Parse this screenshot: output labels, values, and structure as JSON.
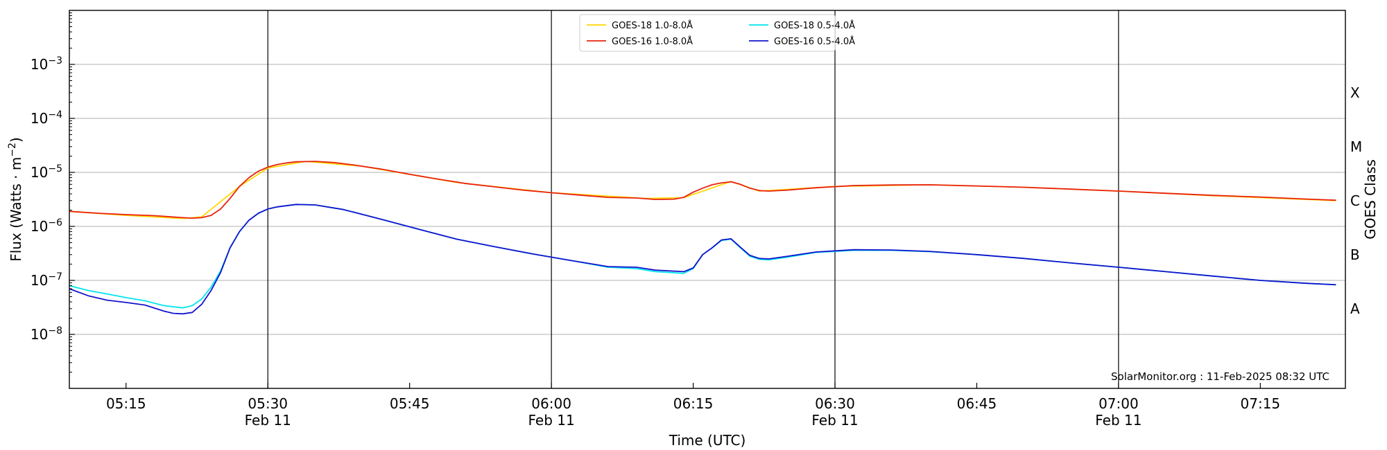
{
  "chart_data": {
    "type": "line",
    "xlabel": "Time (UTC)",
    "ylabel_base": "Flux (Watts · m",
    "ylabel_exp": "−2",
    "ylabel_close": ")",
    "y2label": "GOES Class",
    "y_scale": "log",
    "xlim": [
      "2025-02-11T05:09",
      "2025-02-11T07:24"
    ],
    "ylim": [
      1e-09,
      0.01
    ],
    "grid": "horizontal",
    "legend": {
      "placement": "top-center",
      "columns": 2
    },
    "x_ticks": [
      {
        "time": "2025-02-11T05:15",
        "label": "05:15",
        "sublabel": ""
      },
      {
        "time": "2025-02-11T05:30",
        "label": "05:30",
        "sublabel": "Feb 11"
      },
      {
        "time": "2025-02-11T05:45",
        "label": "05:45",
        "sublabel": ""
      },
      {
        "time": "2025-02-11T06:00",
        "label": "06:00",
        "sublabel": "Feb 11"
      },
      {
        "time": "2025-02-11T06:15",
        "label": "06:15",
        "sublabel": ""
      },
      {
        "time": "2025-02-11T06:30",
        "label": "06:30",
        "sublabel": "Feb 11"
      },
      {
        "time": "2025-02-11T06:45",
        "label": "06:45",
        "sublabel": ""
      },
      {
        "time": "2025-02-11T07:00",
        "label": "07:00",
        "sublabel": "Feb 11"
      },
      {
        "time": "2025-02-11T07:15",
        "label": "07:15",
        "sublabel": ""
      }
    ],
    "vlines": [
      "2025-02-11T05:30",
      "2025-02-11T06:00",
      "2025-02-11T06:30",
      "2025-02-11T07:00"
    ],
    "y_ticks": [
      {
        "value": 1e-08,
        "base": "10",
        "exp": "−8"
      },
      {
        "value": 1e-07,
        "base": "10",
        "exp": "−7"
      },
      {
        "value": 1e-06,
        "base": "10",
        "exp": "−6"
      },
      {
        "value": 1e-05,
        "base": "10",
        "exp": "−5"
      },
      {
        "value": 0.0001,
        "base": "10",
        "exp": "−4"
      },
      {
        "value": 0.001,
        "base": "10",
        "exp": "−3"
      }
    ],
    "y2_ticks": [
      {
        "value": 3e-08,
        "label": "A"
      },
      {
        "value": 3e-07,
        "label": "B"
      },
      {
        "value": 3e-06,
        "label": "C"
      },
      {
        "value": 3e-05,
        "label": "M"
      },
      {
        "value": 0.0003,
        "label": "X"
      }
    ],
    "annotation": "SolarMonitor.org : 11-Feb-2025 08:32 UTC",
    "series": [
      {
        "name": "GOES-18 1.0-8.0Å",
        "color": "#ffd700",
        "x": [
          "2025-02-11T05:09",
          "2025-02-11T05:15",
          "2025-02-11T05:21",
          "2025-02-11T05:23",
          "2025-02-11T05:27",
          "2025-02-11T05:30",
          "2025-02-11T05:34",
          "2025-02-11T05:40",
          "2025-02-11T05:50",
          "2025-02-11T06:00",
          "2025-02-11T06:10",
          "2025-02-11T06:14",
          "2025-02-11T06:19",
          "2025-02-11T06:22",
          "2025-02-11T06:30",
          "2025-02-11T06:40",
          "2025-02-11T06:50",
          "2025-02-11T07:00",
          "2025-02-11T07:10",
          "2025-02-11T07:23"
        ],
        "values": [
          1.9e-06,
          1.6e-06,
          1.4e-06,
          1.5e-06,
          5.5e-06,
          1.2e-05,
          1.6e-05,
          1.3e-05,
          6.5e-06,
          4.2e-06,
          3.3e-06,
          3.4e-06,
          6.8e-06,
          4.5e-06,
          5.5e-06,
          5.9e-06,
          5.3e-06,
          4.5e-06,
          3.7e-06,
          3e-06
        ]
      },
      {
        "name": "GOES-16 1.0-8.0Å",
        "color": "#e8220e",
        "x": [
          "2025-02-11T05:09",
          "2025-02-11T05:12",
          "2025-02-11T05:15",
          "2025-02-11T05:18",
          "2025-02-11T05:21",
          "2025-02-11T05:22",
          "2025-02-11T05:23",
          "2025-02-11T05:24",
          "2025-02-11T05:25",
          "2025-02-11T05:26",
          "2025-02-11T05:27",
          "2025-02-11T05:28",
          "2025-02-11T05:29",
          "2025-02-11T05:30",
          "2025-02-11T05:31",
          "2025-02-11T05:32",
          "2025-02-11T05:33",
          "2025-02-11T05:35",
          "2025-02-11T05:37",
          "2025-02-11T05:39",
          "2025-02-11T05:42",
          "2025-02-11T05:45",
          "2025-02-11T05:48",
          "2025-02-11T05:51",
          "2025-02-11T05:54",
          "2025-02-11T05:57",
          "2025-02-11T06:00",
          "2025-02-11T06:03",
          "2025-02-11T06:06",
          "2025-02-11T06:09",
          "2025-02-11T06:11",
          "2025-02-11T06:13",
          "2025-02-11T06:14",
          "2025-02-11T06:15",
          "2025-02-11T06:16",
          "2025-02-11T06:17",
          "2025-02-11T06:18",
          "2025-02-11T06:19",
          "2025-02-11T06:20",
          "2025-02-11T06:21",
          "2025-02-11T06:22",
          "2025-02-11T06:23",
          "2025-02-11T06:25",
          "2025-02-11T06:28",
          "2025-02-11T06:32",
          "2025-02-11T06:36",
          "2025-02-11T06:40",
          "2025-02-11T06:45",
          "2025-02-11T06:50",
          "2025-02-11T06:55",
          "2025-02-11T07:00",
          "2025-02-11T07:05",
          "2025-02-11T07:10",
          "2025-02-11T07:15",
          "2025-02-11T07:20",
          "2025-02-11T07:23"
        ],
        "values": [
          1.9e-06,
          1.75e-06,
          1.65e-06,
          1.58e-06,
          1.45e-06,
          1.42e-06,
          1.45e-06,
          1.6e-06,
          2.1e-06,
          3.3e-06,
          5.5e-06,
          8e-06,
          1.05e-05,
          1.25e-05,
          1.4e-05,
          1.5e-05,
          1.57e-05,
          1.6e-05,
          1.52e-05,
          1.38e-05,
          1.15e-05,
          9.2e-06,
          7.5e-06,
          6.2e-06,
          5.4e-06,
          4.7e-06,
          4.2e-06,
          3.8e-06,
          3.45e-06,
          3.35e-06,
          3.15e-06,
          3.2e-06,
          3.45e-06,
          4.3e-06,
          5.1e-06,
          5.9e-06,
          6.4e-06,
          6.7e-06,
          6e-06,
          5.1e-06,
          4.6e-06,
          4.5e-06,
          4.7e-06,
          5.2e-06,
          5.7e-06,
          5.85e-06,
          5.9e-06,
          5.6e-06,
          5.3e-06,
          4.9e-06,
          4.5e-06,
          4.1e-06,
          3.75e-06,
          3.5e-06,
          3.2e-06,
          3.05e-06
        ]
      },
      {
        "name": "GOES-18 0.5-4.0Å",
        "color": "#00e5ee",
        "x": [
          "2025-02-11T05:09",
          "2025-02-11T05:11",
          "2025-02-11T05:13",
          "2025-02-11T05:15",
          "2025-02-11T05:17",
          "2025-02-11T05:19",
          "2025-02-11T05:21",
          "2025-02-11T05:22",
          "2025-02-11T05:23",
          "2025-02-11T05:24",
          "2025-02-11T05:25",
          "2025-02-11T05:26",
          "2025-02-11T05:27",
          "2025-02-11T05:28",
          "2025-02-11T05:29",
          "2025-02-11T05:30",
          "2025-02-11T05:31",
          "2025-02-11T05:33",
          "2025-02-11T05:35",
          "2025-02-11T05:38",
          "2025-02-11T05:42",
          "2025-02-11T05:46",
          "2025-02-11T05:50",
          "2025-02-11T05:54",
          "2025-02-11T05:58",
          "2025-02-11T06:02",
          "2025-02-11T06:06",
          "2025-02-11T06:09",
          "2025-02-11T06:11",
          "2025-02-11T06:14",
          "2025-02-11T06:15",
          "2025-02-11T06:16",
          "2025-02-11T06:17",
          "2025-02-11T06:18",
          "2025-02-11T06:19",
          "2025-02-11T06:20",
          "2025-02-11T06:21",
          "2025-02-11T06:22",
          "2025-02-11T06:23",
          "2025-02-11T06:25",
          "2025-02-11T06:28",
          "2025-02-11T06:32",
          "2025-02-11T06:36",
          "2025-02-11T06:40",
          "2025-02-11T06:45",
          "2025-02-11T06:50",
          "2025-02-11T06:55",
          "2025-02-11T07:00",
          "2025-02-11T07:05",
          "2025-02-11T07:10",
          "2025-02-11T07:15",
          "2025-02-11T07:20",
          "2025-02-11T07:23"
        ],
        "values": [
          8e-08,
          6.5e-08,
          5.6e-08,
          4.8e-08,
          4.2e-08,
          3.4e-08,
          3.1e-08,
          3.4e-08,
          4.5e-08,
          7.5e-08,
          1.5e-07,
          4e-07,
          8e-07,
          1.3e-06,
          1.75e-06,
          2.1e-06,
          2.3e-06,
          2.55e-06,
          2.5e-06,
          2.05e-06,
          1.35e-06,
          8.8e-07,
          5.8e-07,
          4.2e-07,
          3.1e-07,
          2.35e-07,
          1.75e-07,
          1.65e-07,
          1.45e-07,
          1.35e-07,
          1.65e-07,
          3e-07,
          4e-07,
          5.5e-07,
          5.8e-07,
          4e-07,
          2.8e-07,
          2.45e-07,
          2.4e-07,
          2.7e-07,
          3.3e-07,
          3.6e-07,
          3.6e-07,
          3.4e-07,
          3e-07,
          2.55e-07,
          2.1e-07,
          1.75e-07,
          1.45e-07,
          1.2e-07,
          1e-07,
          8.8e-08,
          8.3e-08
        ]
      },
      {
        "name": "GOES-16 0.5-4.0Å",
        "color": "#1313cc",
        "x": [
          "2025-02-11T05:09",
          "2025-02-11T05:11",
          "2025-02-11T05:13",
          "2025-02-11T05:15",
          "2025-02-11T05:17",
          "2025-02-11T05:19",
          "2025-02-11T05:20",
          "2025-02-11T05:21",
          "2025-02-11T05:22",
          "2025-02-11T05:23",
          "2025-02-11T05:24",
          "2025-02-11T05:25",
          "2025-02-11T05:26",
          "2025-02-11T05:27",
          "2025-02-11T05:28",
          "2025-02-11T05:29",
          "2025-02-11T05:30",
          "2025-02-11T05:31",
          "2025-02-11T05:33",
          "2025-02-11T05:35",
          "2025-02-11T05:38",
          "2025-02-11T05:42",
          "2025-02-11T05:46",
          "2025-02-11T05:50",
          "2025-02-11T05:54",
          "2025-02-11T05:58",
          "2025-02-11T06:02",
          "2025-02-11T06:06",
          "2025-02-11T06:09",
          "2025-02-11T06:11",
          "2025-02-11T06:14",
          "2025-02-11T06:15",
          "2025-02-11T06:16",
          "2025-02-11T06:17",
          "2025-02-11T06:18",
          "2025-02-11T06:19",
          "2025-02-11T06:20",
          "2025-02-11T06:21",
          "2025-02-11T06:22",
          "2025-02-11T06:23",
          "2025-02-11T06:25",
          "2025-02-11T06:28",
          "2025-02-11T06:32",
          "2025-02-11T06:36",
          "2025-02-11T06:40",
          "2025-02-11T06:45",
          "2025-02-11T06:50",
          "2025-02-11T06:55",
          "2025-02-11T07:00",
          "2025-02-11T07:05",
          "2025-02-11T07:10",
          "2025-02-11T07:15",
          "2025-02-11T07:20",
          "2025-02-11T07:23"
        ],
        "values": [
          7e-08,
          5.2e-08,
          4.3e-08,
          3.9e-08,
          3.5e-08,
          2.7e-08,
          2.45e-08,
          2.4e-08,
          2.55e-08,
          3.6e-08,
          6.5e-08,
          1.4e-07,
          4e-07,
          8e-07,
          1.3e-06,
          1.75e-06,
          2.1e-06,
          2.3e-06,
          2.55e-06,
          2.5e-06,
          2.05e-06,
          1.35e-06,
          8.8e-07,
          5.8e-07,
          4.2e-07,
          3.1e-07,
          2.35e-07,
          1.8e-07,
          1.75e-07,
          1.55e-07,
          1.45e-07,
          1.7e-07,
          3e-07,
          4e-07,
          5.6e-07,
          5.9e-07,
          4.1e-07,
          2.9e-07,
          2.55e-07,
          2.5e-07,
          2.8e-07,
          3.35e-07,
          3.7e-07,
          3.65e-07,
          3.45e-07,
          3e-07,
          2.55e-07,
          2.1e-07,
          1.75e-07,
          1.45e-07,
          1.2e-07,
          1e-07,
          8.8e-08,
          8.3e-08
        ]
      }
    ]
  }
}
